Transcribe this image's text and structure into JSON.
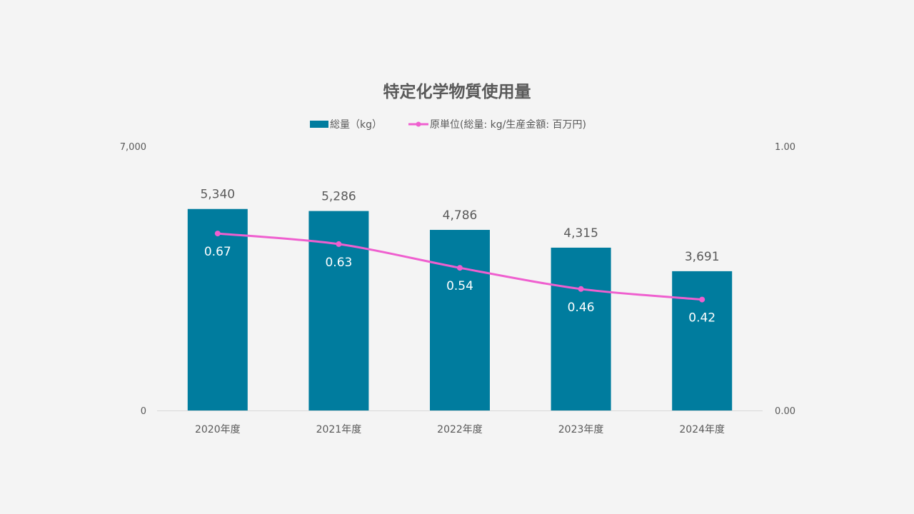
{
  "chart_data": {
    "type": "bar",
    "title": "特定化学物質使用量",
    "categories": [
      "2020年度",
      "2021年度",
      "2022年度",
      "2023年度",
      "2024年度"
    ],
    "series": [
      {
        "name": "総量（kg）",
        "type": "bar",
        "axis": "left",
        "color": "#007c9e",
        "values": [
          5340,
          5286,
          4786,
          4315,
          3691
        ],
        "labels": [
          "5,340",
          "5,286",
          "4,786",
          "4,315",
          "3,691"
        ]
      },
      {
        "name": "原単位(総量: kg/生産金額: 百万円)",
        "type": "line",
        "axis": "right",
        "color": "#ef5fcf",
        "values": [
          0.67,
          0.63,
          0.54,
          0.46,
          0.42
        ],
        "labels": [
          "0.67",
          "0.63",
          "0.54",
          "0.46",
          "0.42"
        ]
      }
    ],
    "y_left": {
      "ylim": [
        0,
        7000
      ],
      "ticks": [
        "0",
        "7,000"
      ],
      "tick_values": [
        0,
        7000
      ]
    },
    "y_right": {
      "ylim": [
        0,
        1.0
      ],
      "ticks": [
        "0.00",
        "1.00"
      ],
      "tick_values": [
        0,
        1.0
      ]
    },
    "grid": false,
    "legend_position": "top"
  }
}
